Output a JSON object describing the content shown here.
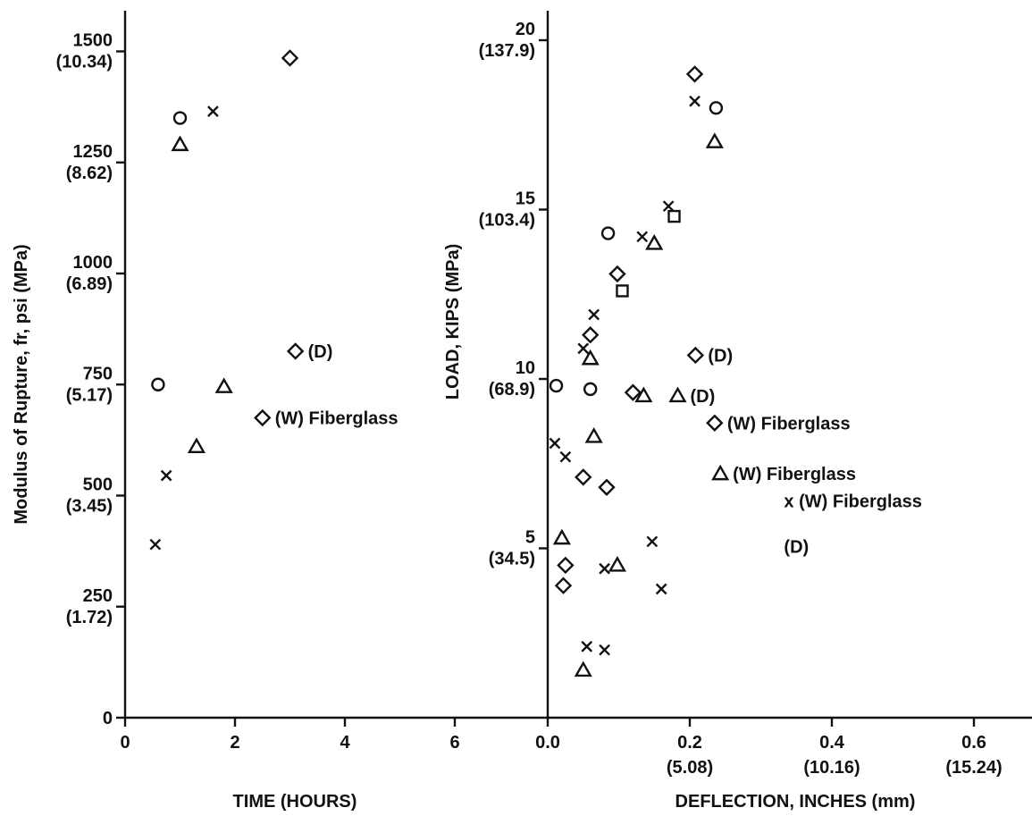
{
  "chart_data": [
    {
      "type": "scatter",
      "xlabel": "TIME (HOURS)",
      "ylabel": "Modulus of Rupture, fr, psi (MPa)",
      "xlim": [
        0,
        8
      ],
      "ylim": [
        0,
        1600
      ],
      "x_ticks": [
        {
          "value": 0,
          "label": "0"
        },
        {
          "value": 2,
          "label": "2"
        },
        {
          "value": 4,
          "label": "4"
        },
        {
          "value": 6,
          "label": "6"
        }
      ],
      "y_ticks": [
        {
          "value": 0,
          "label": "0",
          "sub": ""
        },
        {
          "value": 250,
          "label": "250",
          "sub": "(1.72)"
        },
        {
          "value": 500,
          "label": "500",
          "sub": "(3.45)"
        },
        {
          "value": 750,
          "label": "750",
          "sub": "(5.17)"
        },
        {
          "value": 1000,
          "label": "1000",
          "sub": "(6.89)"
        },
        {
          "value": 1250,
          "label": "1250",
          "sub": "(8.62)"
        },
        {
          "value": 1500,
          "label": "1500",
          "sub": "(10.34)"
        }
      ],
      "series": [
        {
          "marker": "circle",
          "points": [
            [
              1.0,
              1350
            ],
            [
              0.6,
              750
            ]
          ]
        },
        {
          "marker": "cross",
          "points": [
            [
              1.6,
              1365
            ],
            [
              0.75,
              545
            ],
            [
              0.55,
              390
            ]
          ]
        },
        {
          "marker": "triangle",
          "points": [
            [
              1.0,
              1290
            ],
            [
              1.8,
              745
            ],
            [
              1.3,
              610
            ]
          ]
        },
        {
          "marker": "diamond",
          "points": [
            [
              3.0,
              1485
            ],
            [
              3.1,
              825
            ],
            [
              2.5,
              675
            ]
          ]
        }
      ],
      "annotations": [
        {
          "x": 3.1,
          "y": 825,
          "text": "(D)"
        },
        {
          "x": 2.5,
          "y": 675,
          "text": "(W) Fiberglass"
        }
      ]
    },
    {
      "type": "scatter",
      "xlabel": "DEFLECTION, INCHES (mm)",
      "ylabel": "LOAD, KIPS (MPa)",
      "xlim": [
        0,
        0.7
      ],
      "ylim": [
        0,
        21
      ],
      "x_ticks": [
        {
          "value": 0.0,
          "label": "0.0",
          "sub": ""
        },
        {
          "value": 0.2,
          "label": "0.2",
          "sub": "(5.08)"
        },
        {
          "value": 0.4,
          "label": "0.4",
          "sub": "(10.16)"
        },
        {
          "value": 0.6,
          "label": "0.6",
          "sub": "(15.24)"
        }
      ],
      "y_ticks": [
        {
          "value": 5,
          "label": "5",
          "sub": "(34.5)"
        },
        {
          "value": 10,
          "label": "10",
          "sub": "(68.9)"
        },
        {
          "value": 15,
          "label": "15",
          "sub": "(103.4)"
        },
        {
          "value": 20,
          "label": "20",
          "sub": "(137.9)"
        }
      ],
      "series": [
        {
          "marker": "circle",
          "points": [
            [
              0.237,
              18.0
            ],
            [
              0.085,
              14.3
            ],
            [
              0.012,
              9.8
            ],
            [
              0.06,
              9.7
            ]
          ]
        },
        {
          "marker": "cross",
          "points": [
            [
              0.207,
              18.2
            ],
            [
              0.17,
              15.1
            ],
            [
              0.133,
              14.2
            ],
            [
              0.065,
              11.9
            ],
            [
              0.05,
              10.9
            ],
            [
              0.01,
              8.1
            ],
            [
              0.025,
              7.7
            ],
            [
              0.147,
              5.2
            ],
            [
              0.08,
              4.4
            ],
            [
              0.16,
              3.8
            ],
            [
              0.055,
              2.1
            ],
            [
              0.08,
              2.0
            ]
          ]
        },
        {
          "marker": "triangle",
          "points": [
            [
              0.235,
              17.0
            ],
            [
              0.15,
              14.0
            ],
            [
              0.06,
              10.6
            ],
            [
              0.135,
              9.5
            ],
            [
              0.183,
              9.5
            ],
            [
              0.065,
              8.3
            ],
            [
              0.243,
              7.2
            ],
            [
              0.02,
              5.3
            ],
            [
              0.098,
              4.5
            ],
            [
              0.05,
              1.4
            ]
          ]
        },
        {
          "marker": "diamond",
          "points": [
            [
              0.207,
              19.0
            ],
            [
              0.098,
              13.1
            ],
            [
              0.06,
              11.3
            ],
            [
              0.208,
              10.7
            ],
            [
              0.12,
              9.6
            ],
            [
              0.235,
              8.7
            ],
            [
              0.05,
              7.1
            ],
            [
              0.083,
              6.8
            ],
            [
              0.025,
              4.5
            ],
            [
              0.022,
              3.9
            ]
          ]
        },
        {
          "marker": "square",
          "points": [
            [
              0.178,
              14.8
            ],
            [
              0.105,
              12.6
            ]
          ]
        }
      ],
      "annotations": [
        {
          "x": 0.208,
          "y": 10.7,
          "text": "(D)"
        },
        {
          "x": 0.183,
          "y": 9.5,
          "text": "(D)"
        },
        {
          "x": 0.235,
          "y": 8.7,
          "text": "(W) Fiberglass"
        },
        {
          "x": 0.243,
          "y": 7.2,
          "text": "(W) Fiberglass"
        },
        {
          "x": 0.315,
          "y": 6.4,
          "text": "x (W) Fiberglass"
        },
        {
          "x": 0.315,
          "y": 5.05,
          "text": "(D)"
        }
      ]
    }
  ]
}
